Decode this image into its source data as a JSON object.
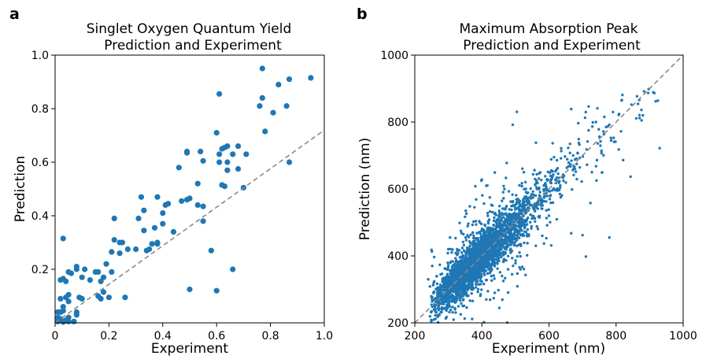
{
  "chart_data": [
    {
      "type": "scatter",
      "panel_label": "a",
      "title_line1": "Singlet Oxygen Quantum Yield",
      "title_line2": "Prediction and Experiment",
      "xlabel": "Experiment",
      "ylabel": "Prediction",
      "xlim": [
        0,
        1.0
      ],
      "ylim": [
        0,
        1.0
      ],
      "x_ticks": [
        0,
        0.2,
        0.4,
        0.6,
        0.8,
        1.0
      ],
      "x_tick_labels": [
        "0",
        "0.2",
        "0.4",
        "0.6",
        "0.8",
        "1.0"
      ],
      "y_ticks": [
        0.2,
        0.4,
        0.6,
        0.8,
        1.0
      ],
      "y_tick_labels": [
        "0.2",
        "0.4",
        "0.6",
        "0.8",
        "1.0"
      ],
      "reference_line": {
        "style": "dashed",
        "color": "#888888",
        "x": [
          0,
          1.0
        ],
        "y": [
          0,
          0.72
        ]
      },
      "marker_color": "#1f77b4",
      "points": [
        [
          0.77,
          0.95
        ],
        [
          0.95,
          0.915
        ],
        [
          0.87,
          0.91
        ],
        [
          0.83,
          0.89
        ],
        [
          0.86,
          0.81
        ],
        [
          0.76,
          0.81
        ],
        [
          0.77,
          0.84
        ],
        [
          0.81,
          0.785
        ],
        [
          0.61,
          0.855
        ],
        [
          0.78,
          0.715
        ],
        [
          0.6,
          0.71
        ],
        [
          0.87,
          0.6
        ],
        [
          0.68,
          0.66
        ],
        [
          0.66,
          0.63
        ],
        [
          0.71,
          0.63
        ],
        [
          0.61,
          0.63
        ],
        [
          0.62,
          0.65
        ],
        [
          0.63,
          0.655
        ],
        [
          0.64,
          0.66
        ],
        [
          0.61,
          0.6
        ],
        [
          0.64,
          0.6
        ],
        [
          0.64,
          0.57
        ],
        [
          0.68,
          0.575
        ],
        [
          0.62,
          0.515
        ],
        [
          0.63,
          0.51
        ],
        [
          0.7,
          0.505
        ],
        [
          0.55,
          0.605
        ],
        [
          0.49,
          0.64
        ],
        [
          0.49,
          0.635
        ],
        [
          0.54,
          0.64
        ],
        [
          0.46,
          0.58
        ],
        [
          0.53,
          0.52
        ],
        [
          0.49,
          0.46
        ],
        [
          0.5,
          0.465
        ],
        [
          0.47,
          0.455
        ],
        [
          0.53,
          0.44
        ],
        [
          0.55,
          0.435
        ],
        [
          0.55,
          0.38
        ],
        [
          0.41,
          0.44
        ],
        [
          0.42,
          0.445
        ],
        [
          0.44,
          0.34
        ],
        [
          0.38,
          0.47
        ],
        [
          0.4,
          0.41
        ],
        [
          0.4,
          0.37
        ],
        [
          0.37,
          0.355
        ],
        [
          0.38,
          0.295
        ],
        [
          0.38,
          0.3
        ],
        [
          0.36,
          0.295
        ],
        [
          0.33,
          0.345
        ],
        [
          0.32,
          0.47
        ],
        [
          0.33,
          0.42
        ],
        [
          0.31,
          0.39
        ],
        [
          0.35,
          0.275
        ],
        [
          0.34,
          0.27
        ],
        [
          0.3,
          0.275
        ],
        [
          0.27,
          0.275
        ],
        [
          0.22,
          0.39
        ],
        [
          0.22,
          0.31
        ],
        [
          0.24,
          0.3
        ],
        [
          0.25,
          0.3
        ],
        [
          0.24,
          0.26
        ],
        [
          0.21,
          0.265
        ],
        [
          0.21,
          0.19
        ],
        [
          0.19,
          0.22
        ],
        [
          0.16,
          0.19
        ],
        [
          0.18,
          0.17
        ],
        [
          0.17,
          0.155
        ],
        [
          0.15,
          0.19
        ],
        [
          0.18,
          0.115
        ],
        [
          0.17,
          0.09
        ],
        [
          0.16,
          0.1
        ],
        [
          0.2,
          0.095
        ],
        [
          0.26,
          0.095
        ],
        [
          0.13,
          0.16
        ],
        [
          0.11,
          0.2
        ],
        [
          0.1,
          0.17
        ],
        [
          0.08,
          0.2
        ],
        [
          0.08,
          0.21
        ],
        [
          0.06,
          0.185
        ],
        [
          0.05,
          0.19
        ],
        [
          0.04,
          0.155
        ],
        [
          0.03,
          0.165
        ],
        [
          0.02,
          0.16
        ],
        [
          0.03,
          0.315
        ],
        [
          0.09,
          0.095
        ],
        [
          0.1,
          0.09
        ],
        [
          0.05,
          0.105
        ],
        [
          0.04,
          0.095
        ],
        [
          0.05,
          0.08
        ],
        [
          0.03,
          0.06
        ],
        [
          0.02,
          0.09
        ],
        [
          0.01,
          0.04
        ],
        [
          0.02,
          0.04
        ],
        [
          0.03,
          0.045
        ],
        [
          0.04,
          0.01
        ],
        [
          0.05,
          0.02
        ],
        [
          0.08,
          0.04
        ],
        [
          0.08,
          0.03
        ],
        [
          0.01,
          0.02
        ],
        [
          0.02,
          0.015
        ],
        [
          0.01,
          0.005
        ],
        [
          0.03,
          0.003
        ],
        [
          0.05,
          0.005
        ],
        [
          0.07,
          0.005
        ],
        [
          0.5,
          0.125
        ],
        [
          0.6,
          0.12
        ],
        [
          0.66,
          0.2
        ],
        [
          0.58,
          0.27
        ]
      ]
    },
    {
      "type": "scatter",
      "panel_label": "b",
      "title_line1": "Maximum Absorption Peak",
      "title_line2": "Prediction and Experiment",
      "xlabel": "Experiment (nm)",
      "ylabel": "Prediction (nm)",
      "xlim": [
        200,
        1000
      ],
      "ylim": [
        200,
        1000
      ],
      "x_ticks": [
        200,
        400,
        600,
        800,
        1000
      ],
      "x_tick_labels": [
        "200",
        "400",
        "600",
        "800",
        "1000"
      ],
      "y_ticks": [
        200,
        400,
        600,
        800,
        1000
      ],
      "y_tick_labels": [
        "200",
        "400",
        "600",
        "800",
        "1000"
      ],
      "reference_line": {
        "style": "dashed",
        "color": "#888888",
        "x": [
          200,
          1000
        ],
        "y": [
          200,
          1000
        ]
      },
      "marker_color": "#1f77b4",
      "cloud": {
        "n_points": 3000,
        "x_min": 240,
        "x_max": 930,
        "mode_x": 380,
        "spread": 28,
        "outlier_fraction": 0.12,
        "outlier_spread": 85
      },
      "outliers": [
        [
          930,
          722
        ],
        [
          918,
          862
        ],
        [
          880,
          820
        ],
        [
          876,
          805
        ],
        [
          870,
          812
        ],
        [
          846,
          852
        ],
        [
          808,
          718
        ],
        [
          794,
          741
        ],
        [
          780,
          792
        ],
        [
          740,
          800
        ],
        [
          712,
          718
        ],
        [
          715,
          742
        ],
        [
          728,
          650
        ],
        [
          700,
          462
        ],
        [
          710,
          398
        ],
        [
          615,
          695
        ],
        [
          635,
          575
        ],
        [
          607,
          655
        ],
        [
          600,
          520
        ],
        [
          580,
          460
        ],
        [
          540,
          460
        ],
        [
          525,
          650
        ],
        [
          515,
          360
        ],
        [
          500,
          378
        ],
        [
          490,
          345
        ],
        [
          478,
          360
        ],
        [
          460,
          340
        ],
        [
          400,
          628
        ],
        [
          352,
          535
        ],
        [
          345,
          465
        ],
        [
          305,
          455
        ],
        [
          300,
          420
        ],
        [
          250,
          418
        ],
        [
          240,
          330
        ],
        [
          252,
          370
        ],
        [
          780,
          455
        ]
      ]
    }
  ]
}
